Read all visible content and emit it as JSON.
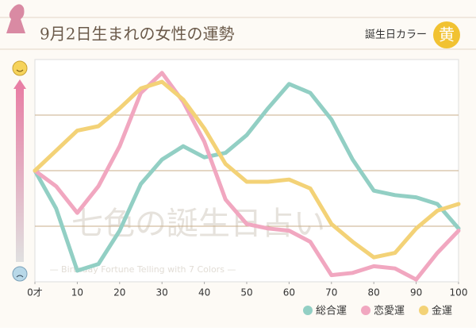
{
  "chart_data": {
    "type": "line",
    "title": "9月2日生まれの女性の運勢",
    "color_label": "誕生日カラー",
    "color_name": "黄",
    "watermark": "七色の誕生日占い",
    "watermark_sub": "— Birthday Fortune Telling with 7 Colors —",
    "x": [
      0,
      5,
      10,
      15,
      20,
      25,
      30,
      35,
      40,
      45,
      50,
      55,
      60,
      65,
      70,
      75,
      80,
      85,
      90,
      95,
      100
    ],
    "series": [
      {
        "name": "総合運",
        "color": "#92cfc4",
        "values": [
          50,
          33,
          5,
          8,
          23,
          44,
          55,
          61,
          56,
          58,
          66,
          78,
          89,
          85,
          73,
          55,
          41,
          39,
          38,
          35,
          24
        ]
      },
      {
        "name": "恋愛運",
        "color": "#f1a7c0",
        "values": [
          50,
          43,
          31,
          43,
          61,
          85,
          94,
          81,
          63,
          37,
          26,
          24,
          23,
          18,
          3,
          4,
          7,
          6,
          1,
          13,
          23
        ]
      },
      {
        "name": "金運",
        "color": "#f3d277",
        "values": [
          50,
          59,
          68,
          70,
          78,
          87,
          90,
          82,
          69,
          53,
          45,
          45,
          46,
          42,
          26,
          18,
          11,
          13,
          24,
          32,
          35
        ]
      }
    ],
    "xlim": [
      0,
      100
    ],
    "xticks": [
      {
        "value": 0,
        "label": "0才"
      },
      10,
      20,
      30,
      40,
      50,
      60,
      70,
      80,
      90,
      100
    ],
    "ylim": [
      0,
      100
    ],
    "yticks": [
      25,
      50,
      75
    ],
    "grid": true
  }
}
